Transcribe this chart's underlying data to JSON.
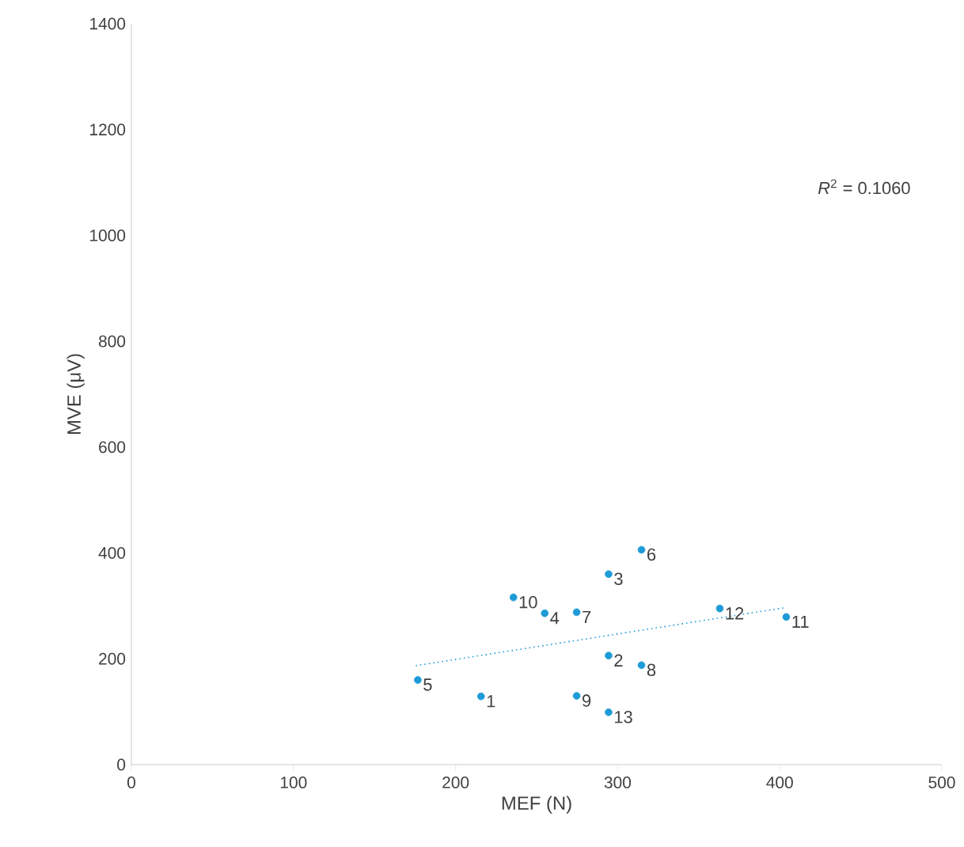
{
  "chart_data": {
    "type": "scatter",
    "xlabel": "MEF (N)",
    "ylabel": "MVE (μV)",
    "xlim": [
      0,
      500
    ],
    "xticks": [
      0,
      100,
      200,
      300,
      400,
      500
    ],
    "ylim": [
      0,
      1400
    ],
    "yticks": [
      0,
      200,
      400,
      600,
      800,
      1000,
      1200,
      1400
    ],
    "grid": false,
    "annotations": [
      "*R*$^{2}$ = 0.1060",
      {
        "text": "1",
        "x": 215.7,
        "y": 129
      },
      {
        "text": "2",
        "x": 294.4,
        "y": 206
      },
      {
        "text": "3",
        "x": 294.4,
        "y": 360
      },
      {
        "text": "4",
        "x": 255,
        "y": 286
      },
      {
        "text": "5",
        "x": 176.7,
        "y": 160
      },
      {
        "text": "6",
        "x": 314.7,
        "y": 406
      },
      {
        "text": "7",
        "x": 274.7,
        "y": 288
      },
      {
        "text": "8",
        "x": 314.7,
        "y": 188
      },
      {
        "text": "9",
        "x": 274.7,
        "y": 130
      },
      {
        "text": "10",
        "x": 235.7,
        "y": 316
      },
      {
        "text": "11",
        "x": 404,
        "y": 279
      },
      {
        "text": "12",
        "x": 363,
        "y": 295
      },
      {
        "text": "13",
        "x": 294.4,
        "y": 99
      }
    ],
    "series": [
      {
        "color": "#1e9bd7",
        "marker": "circle",
        "x": [
          215.7,
          294.4,
          294.4,
          255,
          176.7,
          314.7,
          274.7,
          314.7,
          274.7,
          235.7,
          404,
          363,
          294.4
        ],
        "values": [
          129,
          206,
          360,
          286,
          160,
          406,
          288,
          188,
          130,
          316,
          279,
          295,
          99
        ]
      },
      {
        "type": "line",
        "color": "#1e9bd7",
        "line_style": "dotted",
        "marker": "none",
        "x": [
          175.4,
          404
        ],
        "values": [
          187,
          297
        ]
      }
    ]
  }
}
